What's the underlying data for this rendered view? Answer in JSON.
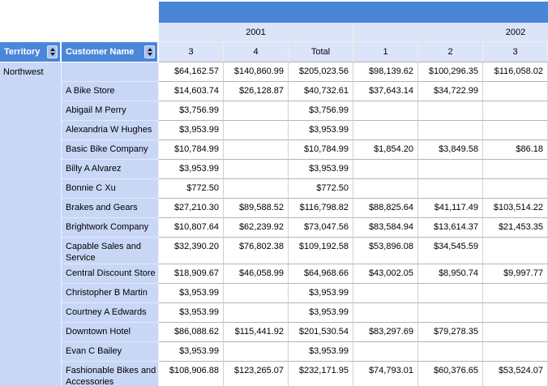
{
  "matrix": {
    "territory": "Northwest",
    "row_headers": [
      "Territory",
      "Customer Name"
    ],
    "year_groups": [
      "2001",
      "2002"
    ],
    "column_headers": [
      "3",
      "4",
      "Total",
      "1",
      "2",
      "3"
    ],
    "rows": [
      {
        "customer": "",
        "values": [
          "$64,162.57",
          "$140,860.99",
          "$205,023.56",
          "$98,139.62",
          "$100,296.35",
          "$116,058.02"
        ]
      },
      {
        "customer": "A Bike Store",
        "values": [
          "$14,603.74",
          "$26,128.87",
          "$40,732.61",
          "$37,643.14",
          "$34,722.99",
          ""
        ]
      },
      {
        "customer": "Abigail M Perry",
        "values": [
          "$3,756.99",
          "",
          "$3,756.99",
          "",
          "",
          ""
        ]
      },
      {
        "customer": "Alexandria W Hughes",
        "values": [
          "$3,953.99",
          "",
          "$3,953.99",
          "",
          "",
          ""
        ]
      },
      {
        "customer": "Basic Bike Company",
        "values": [
          "$10,784.99",
          "",
          "$10,784.99",
          "$1,854.20",
          "$3,849.58",
          "$86.18"
        ]
      },
      {
        "customer": "Billy A Alvarez",
        "values": [
          "$3,953.99",
          "",
          "$3,953.99",
          "",
          "",
          ""
        ]
      },
      {
        "customer": "Bonnie C Xu",
        "values": [
          "$772.50",
          "",
          "$772.50",
          "",
          "",
          ""
        ]
      },
      {
        "customer": "Brakes and Gears",
        "values": [
          "$27,210.30",
          "$89,588.52",
          "$116,798.82",
          "$88,825.64",
          "$41,117.49",
          "$103,514.22"
        ]
      },
      {
        "customer": "Brightwork Company",
        "values": [
          "$10,807.64",
          "$62,239.92",
          "$73,047.56",
          "$83,584.94",
          "$13,614.37",
          "$21,453.35"
        ]
      },
      {
        "customer": "Capable Sales and Service",
        "values": [
          "$32,390.20",
          "$76,802.38",
          "$109,192.58",
          "$53,896.08",
          "$34,545.59",
          ""
        ]
      },
      {
        "customer": "Central Discount Store",
        "values": [
          "$18,909.67",
          "$46,058.99",
          "$64,968.66",
          "$43,002.05",
          "$8,950.74",
          "$9,997.77"
        ]
      },
      {
        "customer": "Christopher B Martin",
        "values": [
          "$3,953.99",
          "",
          "$3,953.99",
          "",
          "",
          ""
        ]
      },
      {
        "customer": "Courtney A Edwards",
        "values": [
          "$3,953.99",
          "",
          "$3,953.99",
          "",
          "",
          ""
        ]
      },
      {
        "customer": "Downtown Hotel",
        "values": [
          "$86,088.62",
          "$115,441.92",
          "$201,530.54",
          "$83,297.69",
          "$79,278.35",
          ""
        ]
      },
      {
        "customer": "Evan C Bailey",
        "values": [
          "$3,953.99",
          "",
          "$3,953.99",
          "",
          "",
          ""
        ]
      },
      {
        "customer": "Fashionable Bikes and Accessories",
        "values": [
          "$108,906.88",
          "$123,265.07",
          "$232,171.95",
          "$74,793.01",
          "$60,376.65",
          "$53,524.07"
        ]
      }
    ]
  },
  "colors": {
    "header_blue": "#4a86d8",
    "group_header_bg": "#dbe4f9",
    "row_header_bg": "#c8d7f5",
    "sort_button_bg": "#abc2f0",
    "grid_line": "#b5b5b5",
    "header_grid_line": "#f1eee4"
  }
}
